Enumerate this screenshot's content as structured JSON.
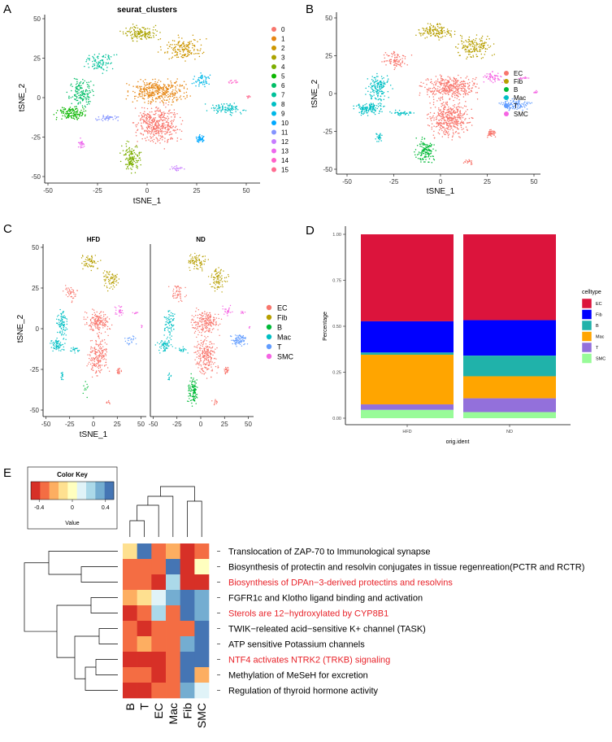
{
  "panel_labels": {
    "a": "A",
    "b": "B",
    "c": "C",
    "d": "D",
    "e": "E"
  },
  "chart_data": [
    {
      "type": "scatter",
      "panel": "A",
      "title": "seurat_clusters",
      "xlabel": "tSNE_1",
      "ylabel": "tSNE_2",
      "xlim": [
        -50,
        55
      ],
      "ylim": [
        -52,
        50
      ],
      "xticks": [
        "-50",
        "-25",
        "0",
        "25",
        "50"
      ],
      "yticks": [
        "50",
        "25",
        "0",
        "-25",
        "-50"
      ],
      "legend_title": "",
      "legend": [
        "0",
        "1",
        "2",
        "3",
        "4",
        "5",
        "6",
        "7",
        "8",
        "9",
        "10",
        "11",
        "12",
        "13",
        "14",
        "15"
      ],
      "colors": [
        "#F8766D",
        "#E68613",
        "#CD9600",
        "#ABA300",
        "#7CAE00",
        "#0CB702",
        "#00BE67",
        "#00C19A",
        "#00BFC4",
        "#00B8E7",
        "#00A9FF",
        "#8494FF",
        "#C77CFF",
        "#ED68ED",
        "#FF61C9",
        "#FF6C91"
      ],
      "clusters": [
        {
          "cluster": "0",
          "celltype": "EC",
          "center": [
            5,
            -17
          ],
          "spread": [
            9,
            10
          ],
          "n": 420
        },
        {
          "cluster": "1",
          "celltype": "EC",
          "center": [
            5,
            4
          ],
          "spread": [
            12,
            6
          ],
          "n": 360
        },
        {
          "cluster": "2",
          "celltype": "Fib",
          "center": [
            18,
            31
          ],
          "spread": [
            8,
            6
          ],
          "n": 160
        },
        {
          "cluster": "3",
          "celltype": "Fib",
          "center": [
            -3,
            41
          ],
          "spread": [
            8,
            4
          ],
          "n": 140
        },
        {
          "cluster": "4",
          "celltype": "B",
          "center": [
            -8,
            -38
          ],
          "spread": [
            4,
            7
          ],
          "n": 130
        },
        {
          "cluster": "5",
          "celltype": "Mac",
          "center": [
            -38,
            -10
          ],
          "spread": [
            6,
            3.5
          ],
          "n": 130
        },
        {
          "cluster": "6",
          "celltype": "Mac",
          "center": [
            -33,
            3
          ],
          "spread": [
            5,
            7
          ],
          "n": 150
        },
        {
          "cluster": "7",
          "celltype": "EC",
          "center": [
            -24,
            22
          ],
          "spread": [
            6,
            5
          ],
          "n": 90
        },
        {
          "cluster": "8",
          "celltype": "T",
          "center": [
            40,
            -7
          ],
          "spread": [
            7,
            3
          ],
          "n": 100
        },
        {
          "cluster": "9",
          "celltype": "SMC",
          "center": [
            28,
            11
          ],
          "spread": [
            4,
            3
          ],
          "n": 50
        },
        {
          "cluster": "10",
          "celltype": "EC",
          "center": [
            27,
            -26
          ],
          "spread": [
            2,
            2
          ],
          "n": 45
        },
        {
          "cluster": "11",
          "celltype": "Mac",
          "center": [
            -20,
            -13
          ],
          "spread": [
            5,
            1.5
          ],
          "n": 40
        },
        {
          "cluster": "12",
          "celltype": "EC",
          "center": [
            15,
            -45
          ],
          "spread": [
            3,
            1.5
          ],
          "n": 20
        },
        {
          "cluster": "13",
          "celltype": "Mac",
          "center": [
            -33,
            -29
          ],
          "spread": [
            1.5,
            2.5
          ],
          "n": 25
        },
        {
          "cluster": "14",
          "celltype": "SMC",
          "center": [
            44,
            10
          ],
          "spread": [
            3,
            0.8
          ],
          "n": 14
        },
        {
          "cluster": "15",
          "celltype": "SMC",
          "center": [
            51,
            1
          ],
          "spread": [
            1,
            1
          ],
          "n": 8
        }
      ]
    },
    {
      "type": "scatter",
      "panel": "B",
      "xlabel": "tSNE_1",
      "ylabel": "tSNE_2",
      "xticks": [
        "-50",
        "-25",
        "0",
        "25",
        "50"
      ],
      "yticks": [
        "50",
        "25",
        "0",
        "-25",
        "-50"
      ],
      "legend": [
        "EC",
        "Fib",
        "B",
        "Mac",
        "T",
        "SMC"
      ],
      "colors": {
        "EC": "#F8766D",
        "Fib": "#B79F00",
        "B": "#00BA38",
        "Mac": "#00BFC4",
        "T": "#619CFF",
        "SMC": "#F564E3"
      }
    },
    {
      "type": "scatter",
      "panel": "C",
      "facets": [
        "HFD",
        "ND"
      ],
      "xlabel": "tSNE_1",
      "ylabel": "tSNE_2",
      "xticks": [
        "-50",
        "-25",
        "0",
        "25",
        "50"
      ],
      "yticks": [
        "50",
        "25",
        "0",
        "-25",
        "-50"
      ],
      "legend": [
        "EC",
        "Fib",
        "B",
        "Mac",
        "T",
        "SMC"
      ],
      "hfd_fraction": {
        "EC": 0.45,
        "Fib": 0.45,
        "B": 0.08,
        "Mac": 0.55,
        "T": 0.2,
        "SMC": 0.5
      }
    },
    {
      "type": "bar",
      "stacked": true,
      "panel": "D",
      "categories": [
        "HFD",
        "ND"
      ],
      "xlabel": "orig.ident",
      "ylabel": "Percentage",
      "ylim": [
        0,
        1
      ],
      "yticks": [
        "0.00",
        "0.25",
        "0.50",
        "0.75",
        "1.00"
      ],
      "legend_title": "celltype",
      "series": [
        {
          "name": "EC",
          "color": "#DC143C",
          "values": [
            0.473,
            0.467
          ]
        },
        {
          "name": "Fib",
          "color": "#0000FF",
          "values": [
            0.17,
            0.193
          ]
        },
        {
          "name": "B",
          "color": "#20B2AA",
          "values": [
            0.012,
            0.112
          ]
        },
        {
          "name": "Mac",
          "color": "#FFA500",
          "values": [
            0.27,
            0.12
          ]
        },
        {
          "name": "T",
          "color": "#9370DB",
          "values": [
            0.03,
            0.075
          ]
        },
        {
          "name": "SMC",
          "color": "#98FB98",
          "values": [
            0.045,
            0.033
          ]
        }
      ]
    },
    {
      "type": "heatmap",
      "panel": "E",
      "color_key": {
        "title": "Color Key",
        "xlabel": "Value",
        "ticks": [
          "-0.4",
          "0",
          "0.4"
        ],
        "range": [
          -0.5,
          0.5
        ],
        "palette": [
          "#D73027",
          "#F46D43",
          "#FDAE61",
          "#FEE090",
          "#FFFFBF",
          "#E0F3F8",
          "#ABD9E9",
          "#74ADD1",
          "#4575B4"
        ]
      },
      "columns": [
        "B",
        "T",
        "EC",
        "Mac",
        "Fib",
        "SMC"
      ],
      "rows": [
        {
          "label": "Translocation of ZAP-70 to Immunological synapse",
          "highlight": false
        },
        {
          "label": "Biosynthesis of protectin and resolvin conjugates in tissue regenreation(PCTR and RCTR)",
          "highlight": false
        },
        {
          "label": "Biosynthesis of DPAn−3-derived protectins and resolvins",
          "highlight": true
        },
        {
          "label": "FGFR1c and Klotho ligand binding and activation",
          "highlight": false
        },
        {
          "label": "Sterols are 12−hydroxylated by CYP8B1",
          "highlight": true
        },
        {
          "label": "TWIK−releated acid−sensitive K+ channel (TASK)",
          "highlight": false
        },
        {
          "label": "ATP sensitive Potassium channels",
          "highlight": false
        },
        {
          "label": "NTF4 activates NTRK2 (TRKB) signaling",
          "highlight": true
        },
        {
          "label": "Methylation of MeSeH for excretion",
          "highlight": false
        },
        {
          "label": "Regulation of thyroid hormone activity",
          "highlight": false
        }
      ],
      "highlight_color": "#E8232A",
      "values": [
        [
          -0.1,
          0.45,
          -0.3,
          -0.2,
          -0.45,
          -0.3
        ],
        [
          -0.3,
          -0.3,
          -0.3,
          0.45,
          -0.45,
          0.0
        ],
        [
          -0.3,
          -0.3,
          -0.45,
          0.2,
          -0.45,
          -0.45
        ],
        [
          -0.2,
          -0.1,
          0.1,
          0.3,
          0.45,
          0.3
        ],
        [
          -0.45,
          -0.3,
          0.2,
          -0.3,
          0.45,
          0.3
        ],
        [
          -0.3,
          -0.45,
          -0.3,
          -0.3,
          -0.3,
          0.45
        ],
        [
          -0.3,
          -0.2,
          -0.3,
          -0.3,
          0.3,
          0.45
        ],
        [
          -0.45,
          -0.45,
          -0.45,
          -0.3,
          0.45,
          0.45
        ],
        [
          -0.3,
          -0.3,
          -0.45,
          -0.3,
          0.45,
          -0.2
        ],
        [
          -0.45,
          -0.45,
          -0.3,
          -0.3,
          0.3,
          0.1
        ]
      ]
    }
  ]
}
